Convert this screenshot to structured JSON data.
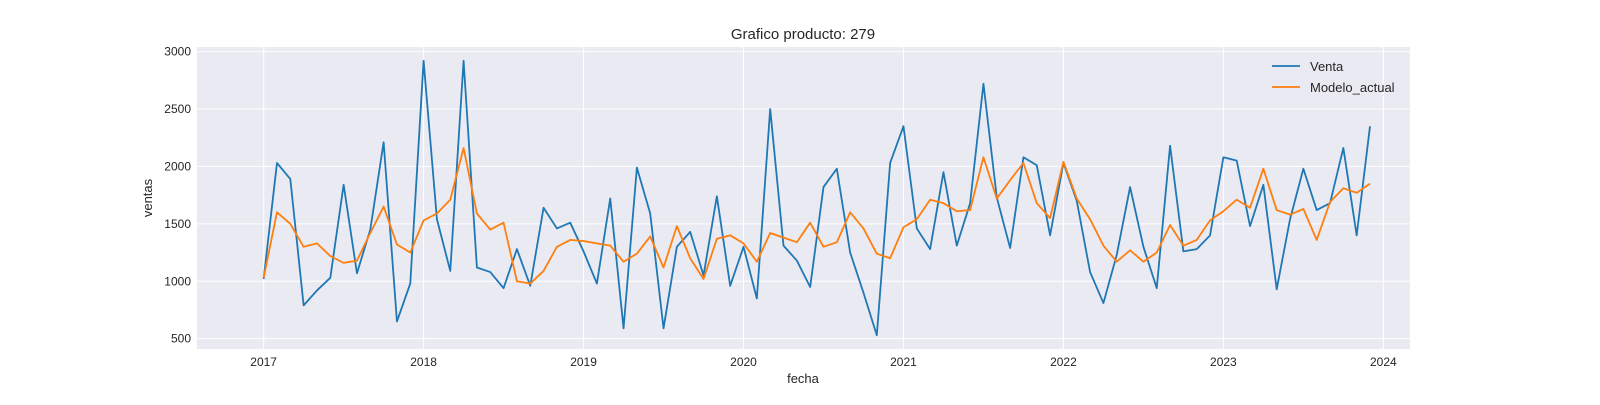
{
  "chart_data": {
    "type": "line",
    "title": "Grafico producto: 279",
    "xlabel": "fecha",
    "ylabel": "ventas",
    "xlim": [
      "2016-08-01",
      "2024-03-01"
    ],
    "ylim": [
      410,
      3040
    ],
    "x_ticks": [
      "2017",
      "2018",
      "2019",
      "2020",
      "2021",
      "2022",
      "2023",
      "2024"
    ],
    "y_ticks": [
      500,
      1000,
      1500,
      2000,
      2500,
      3000
    ],
    "grid": true,
    "legend": "top-right",
    "colors": {
      "plot_background": "#eaeaf2",
      "grid": "#ffffff"
    },
    "x": [
      "2017-01",
      "2017-02",
      "2017-03",
      "2017-04",
      "2017-05",
      "2017-06",
      "2017-07",
      "2017-08",
      "2017-09",
      "2017-10",
      "2017-11",
      "2017-12",
      "2018-01",
      "2018-02",
      "2018-03",
      "2018-04",
      "2018-05",
      "2018-06",
      "2018-07",
      "2018-08",
      "2018-09",
      "2018-10",
      "2018-11",
      "2018-12",
      "2019-01",
      "2019-02",
      "2019-03",
      "2019-04",
      "2019-05",
      "2019-06",
      "2019-07",
      "2019-08",
      "2019-09",
      "2019-10",
      "2019-11",
      "2019-12",
      "2020-01",
      "2020-02",
      "2020-03",
      "2020-04",
      "2020-05",
      "2020-06",
      "2020-07",
      "2020-08",
      "2020-09",
      "2020-10",
      "2020-11",
      "2020-12",
      "2021-01",
      "2021-02",
      "2021-03",
      "2021-04",
      "2021-05",
      "2021-06",
      "2021-07",
      "2021-08",
      "2021-09",
      "2021-10",
      "2021-11",
      "2021-12",
      "2022-01",
      "2022-02",
      "2022-03",
      "2022-04",
      "2022-05",
      "2022-06",
      "2022-07",
      "2022-08",
      "2022-09",
      "2022-10",
      "2022-11",
      "2022-12",
      "2023-01",
      "2023-02",
      "2023-03",
      "2023-04",
      "2023-05",
      "2023-06",
      "2023-07",
      "2023-08",
      "2023-09",
      "2023-10",
      "2023-11",
      "2023-12"
    ],
    "series": [
      {
        "name": "Venta",
        "color": "#1f77b4",
        "values": [
          1020,
          2030,
          1890,
          790,
          920,
          1030,
          1840,
          1070,
          1450,
          2210,
          650,
          980,
          2920,
          1540,
          1090,
          2920,
          1120,
          1080,
          940,
          1280,
          960,
          1640,
          1460,
          1510,
          1260,
          980,
          1720,
          590,
          1990,
          1590,
          590,
          1300,
          1430,
          1050,
          1740,
          960,
          1300,
          850,
          2500,
          1310,
          1180,
          950,
          1820,
          1980,
          1250,
          900,
          530,
          2030,
          2350,
          1460,
          1280,
          1950,
          1310,
          1680,
          2720,
          1730,
          1290,
          2080,
          2010,
          1400,
          2030,
          1700,
          1080,
          810,
          1230,
          1820,
          1300,
          940,
          2180,
          1260,
          1280,
          1400,
          2080,
          2050,
          1480,
          1840,
          930,
          1540,
          1980,
          1620,
          1680,
          2160,
          1400,
          2350
        ]
      },
      {
        "name": "Modelo_actual",
        "color": "#ff7f0e",
        "values": [
          1030,
          1600,
          1500,
          1300,
          1330,
          1220,
          1160,
          1180,
          1420,
          1650,
          1320,
          1250,
          1530,
          1590,
          1710,
          2160,
          1590,
          1450,
          1510,
          1000,
          980,
          1090,
          1300,
          1360,
          1350,
          1330,
          1310,
          1170,
          1240,
          1390,
          1120,
          1480,
          1200,
          1020,
          1370,
          1400,
          1330,
          1170,
          1420,
          1380,
          1340,
          1510,
          1300,
          1340,
          1600,
          1460,
          1240,
          1200,
          1470,
          1540,
          1710,
          1680,
          1610,
          1620,
          2080,
          1720,
          1880,
          2030,
          1680,
          1550,
          2040,
          1720,
          1540,
          1310,
          1170,
          1270,
          1170,
          1250,
          1490,
          1310,
          1360,
          1530,
          1610,
          1710,
          1640,
          1980,
          1620,
          1580,
          1630,
          1360,
          1690,
          1810,
          1770,
          1850
        ]
      }
    ]
  }
}
